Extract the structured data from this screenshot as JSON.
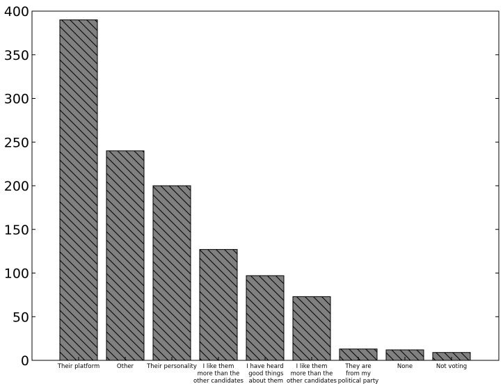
{
  "chart_data": {
    "type": "bar",
    "title": "",
    "xlabel": "",
    "ylabel": "",
    "ylim": [
      0,
      400
    ],
    "yticks": [
      0,
      50,
      100,
      150,
      200,
      250,
      300,
      350,
      400
    ],
    "grid": false,
    "bar_color": "#808080",
    "bar_edge_color": "#000000",
    "bar_hatch": "backslash",
    "categories": [
      "Their platform",
      "Other",
      "Their personality",
      "I like them\nmore than the\nother candidates",
      "I have heard\n good things\n about them",
      "I like them\nmore than the\nother candidates",
      "They are\nfrom my\npolitical party",
      "None",
      "Not voting"
    ],
    "values": [
      390,
      240,
      200,
      127,
      97,
      73,
      13,
      12,
      9
    ]
  }
}
